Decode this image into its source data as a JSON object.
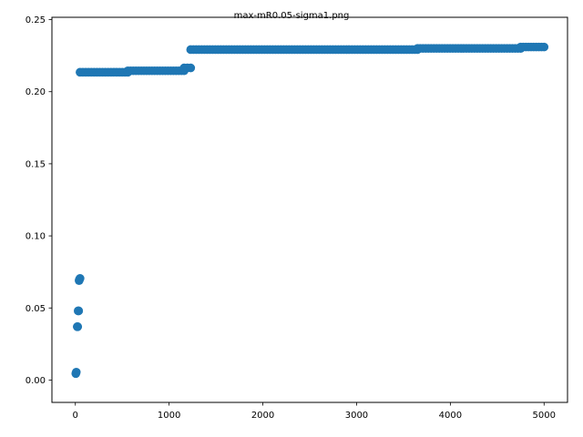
{
  "chart_data": {
    "type": "scatter",
    "title": "max-mR0.05-sigma1.png",
    "xlabel": "",
    "ylabel": "",
    "xlim": [
      -250,
      5250
    ],
    "ylim": [
      -0.0155,
      0.2516
    ],
    "grid": false,
    "marker_color": "#1f77b4",
    "x_ticks": [
      0,
      1000,
      2000,
      3000,
      4000,
      5000
    ],
    "x_tick_labels": [
      "0",
      "1000",
      "2000",
      "3000",
      "4000",
      "5000"
    ],
    "y_ticks": [
      0.0,
      0.05,
      0.1,
      0.15,
      0.2,
      0.25
    ],
    "y_tick_labels": [
      "0.00",
      "0.05",
      "0.10",
      "0.15",
      "0.20",
      "0.25"
    ],
    "series": [
      {
        "name": "max",
        "note": "dense run of points; each [x_start, x_end, y] is a segment of nearly constant value",
        "isolated_points": [
          [
            5,
            0.0045
          ],
          [
            10,
            0.0055
          ],
          [
            20,
            0.037
          ],
          [
            25,
            0.037
          ],
          [
            30,
            0.048
          ],
          [
            35,
            0.048
          ],
          [
            40,
            0.069
          ],
          [
            45,
            0.07
          ],
          [
            50,
            0.0705
          ]
        ],
        "segments": [
          [
            50,
            560,
            0.2135
          ],
          [
            560,
            1160,
            0.2145
          ],
          [
            1160,
            1230,
            0.2165
          ],
          [
            1230,
            3650,
            0.2292
          ],
          [
            3650,
            4750,
            0.23
          ],
          [
            4750,
            5000,
            0.231
          ]
        ]
      }
    ]
  }
}
